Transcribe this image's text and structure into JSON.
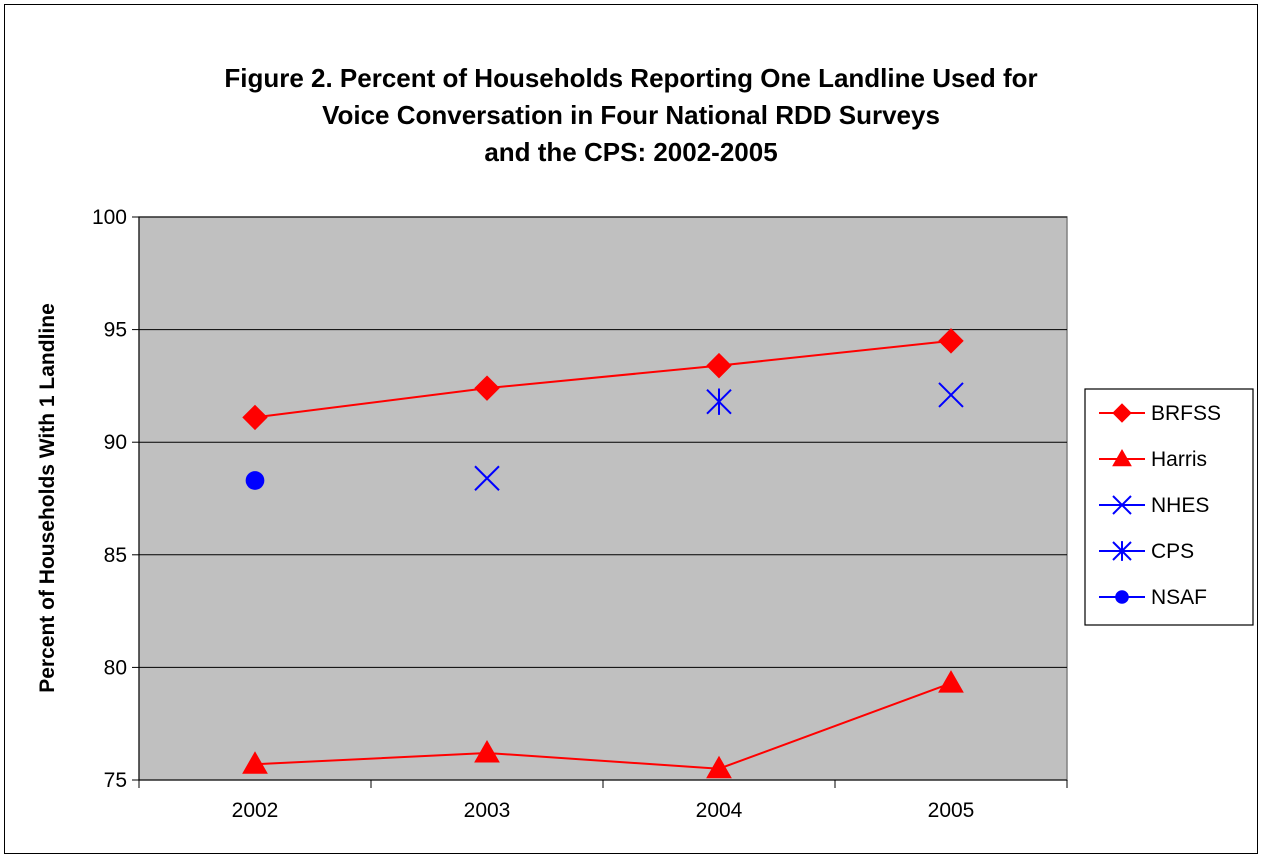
{
  "colors": {
    "plot_area": "#c0c0c0",
    "gridline": "#000000",
    "red_series": "#ff0000",
    "blue_series": "#0000ff"
  },
  "chart_data": {
    "type": "line",
    "title_lines": [
      "Figure 2. Percent of Households Reporting One Landline Used for",
      "Voice Conversation in Four National RDD Surveys",
      "and the CPS: 2002-2005"
    ],
    "xlabel": "",
    "ylabel": "Percent of Households With 1 Landline",
    "categories": [
      "2002",
      "2003",
      "2004",
      "2005"
    ],
    "ylim": [
      75,
      100
    ],
    "yticks": [
      75,
      80,
      85,
      90,
      95,
      100
    ],
    "grid": true,
    "legend_position": "right",
    "series": [
      {
        "name": "BRFSS",
        "values": [
          91.1,
          92.4,
          93.4,
          94.5
        ],
        "color": "#ff0000",
        "marker": "diamond",
        "line": true
      },
      {
        "name": "Harris",
        "values": [
          75.7,
          76.2,
          75.5,
          79.3
        ],
        "color": "#ff0000",
        "marker": "triangle",
        "line": true
      },
      {
        "name": "NHES",
        "values": [
          null,
          88.4,
          null,
          92.1
        ],
        "color": "#0000ff",
        "marker": "x",
        "line": false
      },
      {
        "name": "CPS",
        "values": [
          null,
          null,
          91.8,
          null
        ],
        "color": "#0000ff",
        "marker": "asterisk",
        "line": false
      },
      {
        "name": "NSAF",
        "values": [
          88.3,
          null,
          null,
          null
        ],
        "color": "#0000ff",
        "marker": "circle",
        "line": false
      }
    ]
  }
}
